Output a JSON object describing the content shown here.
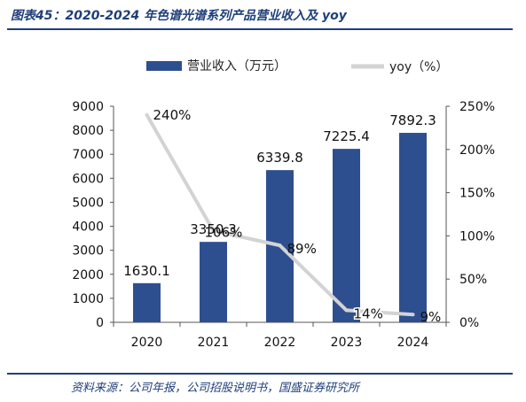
{
  "figure": {
    "title": "图表45：2020-2024 年色谱光谱系列产品营业收入及 yoy",
    "source": "资料来源：公司年报，公司招股说明书，国盛证券研究所"
  },
  "chart_data": {
    "type": "bar",
    "categories": [
      "2020",
      "2021",
      "2022",
      "2023",
      "2024"
    ],
    "series": [
      {
        "name": "营业收入（万元）",
        "type": "bar",
        "axis": "left",
        "values": [
          1630.1,
          3350.3,
          6339.8,
          7225.4,
          7892.3
        ],
        "labels": [
          "1630.1",
          "3350.3",
          "6339.8",
          "7225.4",
          "7892.3"
        ],
        "color": "#2e4f8f"
      },
      {
        "name": "yoy（%）",
        "type": "line",
        "axis": "right",
        "values": [
          240,
          106,
          89,
          14,
          9
        ],
        "labels": [
          "240%",
          "106%",
          "89%",
          "14%",
          "9%"
        ],
        "color": "#d3d3d3"
      }
    ],
    "y_left": {
      "min": 0,
      "max": 9000,
      "ticks": [
        "0",
        "1000",
        "2000",
        "3000",
        "4000",
        "5000",
        "6000",
        "7000",
        "8000",
        "9000"
      ]
    },
    "y_right": {
      "min": 0,
      "max": 250,
      "ticks": [
        "0%",
        "50%",
        "100%",
        "150%",
        "200%",
        "250%"
      ]
    },
    "legend_position": "top",
    "grid": false
  }
}
